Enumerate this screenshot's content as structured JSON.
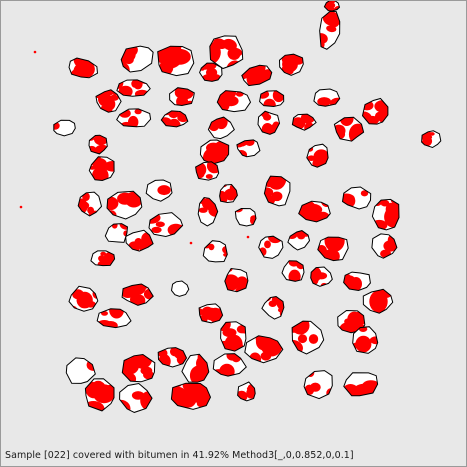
{
  "status": {
    "caption": "Sample [022] covered with bitumen in 41.92% Method3[_,0,0.852,0,0.1]"
  },
  "colors": {
    "background": "#e8e8e8",
    "aggregate_fill": "#ffffff",
    "aggregate_outline": "#000000",
    "bitumen": "#ff0000"
  }
}
